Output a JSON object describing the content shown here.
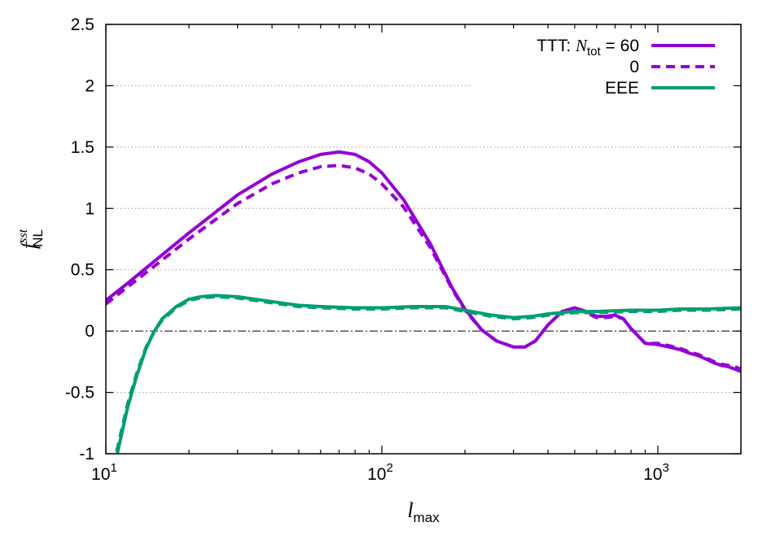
{
  "chart_data": {
    "type": "line",
    "xscale": "log",
    "xlim": [
      10,
      2000
    ],
    "ylim": [
      -1,
      2.5
    ],
    "grid": "horizontal dotted",
    "legend_position": "top-right",
    "xlabel": {
      "base": "l",
      "sub": "max"
    },
    "ylabel": {
      "base": "f",
      "sup": "sst",
      "sub": "NL"
    },
    "x_ticks": [
      {
        "value": 10,
        "base": "10",
        "exp": "1"
      },
      {
        "value": 100,
        "base": "10",
        "exp": "2"
      },
      {
        "value": 1000,
        "base": "10",
        "exp": "3"
      }
    ],
    "y_ticks": [
      {
        "value": -1,
        "label": "-1"
      },
      {
        "value": -0.5,
        "label": "-0.5"
      },
      {
        "value": 0,
        "label": "0"
      },
      {
        "value": 0.5,
        "label": "0.5"
      },
      {
        "value": 1,
        "label": "1"
      },
      {
        "value": 1.5,
        "label": "1.5"
      },
      {
        "value": 2,
        "label": "2"
      },
      {
        "value": 2.5,
        "label": "2.5"
      }
    ],
    "legend": [
      {
        "prefix": "TTT: ",
        "var": "N",
        "sub": "tot",
        "suffix": " = 60"
      },
      {
        "prefix": "",
        "var": "",
        "sub": "",
        "suffix": "0"
      },
      {
        "prefix": "EEE",
        "var": "",
        "sub": "",
        "suffix": ""
      }
    ],
    "series": [
      {
        "style": "solid",
        "color": "#9400d3",
        "x": [
          10,
          12,
          15,
          20,
          25,
          30,
          40,
          50,
          60,
          70,
          80,
          90,
          100,
          120,
          150,
          180,
          200,
          230,
          260,
          300,
          330,
          360,
          400,
          450,
          500,
          550,
          600,
          650,
          700,
          750,
          800,
          900,
          1000,
          1100,
          1200,
          1300,
          1400,
          1500,
          1600,
          1700,
          1800,
          1900,
          2000
        ],
        "y": [
          0.25,
          0.39,
          0.57,
          0.8,
          0.97,
          1.11,
          1.28,
          1.38,
          1.44,
          1.46,
          1.44,
          1.38,
          1.29,
          1.07,
          0.71,
          0.35,
          0.18,
          0.01,
          -0.08,
          -0.13,
          -0.13,
          -0.08,
          0.05,
          0.16,
          0.19,
          0.16,
          0.12,
          0.12,
          0.13,
          0.1,
          0.02,
          -0.1,
          -0.11,
          -0.13,
          -0.15,
          -0.18,
          -0.2,
          -0.23,
          -0.26,
          -0.28,
          -0.29,
          -0.31,
          -0.33
        ]
      },
      {
        "style": "dashed",
        "color": "#9400d3",
        "x": [
          10,
          12,
          15,
          20,
          25,
          30,
          40,
          50,
          60,
          70,
          80,
          90,
          100,
          120,
          150,
          180,
          200,
          230,
          260,
          300,
          330,
          360,
          400,
          450,
          500,
          550,
          600,
          650,
          700,
          750,
          800,
          900,
          1000,
          1100,
          1200,
          1300,
          1400,
          1500,
          1600,
          1700,
          1800,
          1900,
          2000
        ],
        "y": [
          0.22,
          0.36,
          0.53,
          0.75,
          0.91,
          1.04,
          1.2,
          1.29,
          1.34,
          1.35,
          1.33,
          1.28,
          1.2,
          1.01,
          0.68,
          0.34,
          0.17,
          0.01,
          -0.08,
          -0.13,
          -0.13,
          -0.08,
          0.05,
          0.16,
          0.18,
          0.15,
          0.11,
          0.11,
          0.12,
          0.1,
          0.02,
          -0.1,
          -0.1,
          -0.12,
          -0.14,
          -0.17,
          -0.19,
          -0.22,
          -0.25,
          -0.27,
          -0.28,
          -0.29,
          -0.31
        ]
      },
      {
        "style": "solid",
        "color": "#009e73",
        "x": [
          10,
          11,
          12,
          13,
          14,
          15,
          16,
          18,
          20,
          22,
          25,
          30,
          40,
          50,
          60,
          80,
          100,
          130,
          170,
          200,
          250,
          300,
          350,
          400,
          500,
          600,
          800,
          1000,
          1200,
          1500,
          2000
        ],
        "y": [
          -1.5,
          -1.0,
          -0.62,
          -0.35,
          -0.14,
          0.0,
          0.1,
          0.2,
          0.26,
          0.28,
          0.29,
          0.28,
          0.24,
          0.21,
          0.2,
          0.19,
          0.19,
          0.2,
          0.2,
          0.17,
          0.13,
          0.11,
          0.12,
          0.14,
          0.16,
          0.16,
          0.17,
          0.17,
          0.18,
          0.18,
          0.19
        ]
      },
      {
        "style": "dashed",
        "color": "#009e73",
        "x": [
          10,
          11,
          12,
          13,
          14,
          15,
          16,
          18,
          20,
          22,
          25,
          30,
          40,
          50,
          60,
          80,
          100,
          130,
          170,
          200,
          250,
          300,
          350,
          400,
          500,
          600,
          800,
          1000,
          1200,
          1500,
          2000
        ],
        "y": [
          -1.45,
          -0.96,
          -0.59,
          -0.33,
          -0.13,
          0.0,
          0.09,
          0.19,
          0.25,
          0.27,
          0.28,
          0.27,
          0.23,
          0.2,
          0.19,
          0.18,
          0.18,
          0.19,
          0.19,
          0.16,
          0.12,
          0.1,
          0.11,
          0.13,
          0.15,
          0.15,
          0.16,
          0.16,
          0.17,
          0.17,
          0.18
        ]
      }
    ]
  }
}
